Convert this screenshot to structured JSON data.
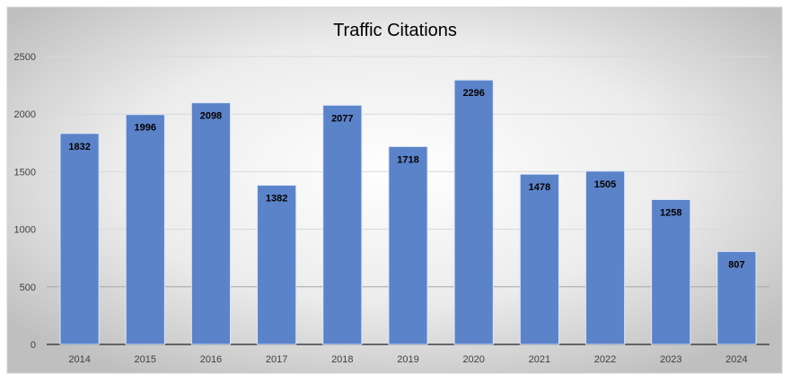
{
  "chart_data": {
    "type": "bar",
    "title": "Traffic Citations",
    "xlabel": "",
    "ylabel": "",
    "categories": [
      "2014",
      "2015",
      "2016",
      "2017",
      "2018",
      "2019",
      "2020",
      "2021",
      "2022",
      "2023",
      "2024"
    ],
    "values": [
      1832,
      1996,
      2098,
      1382,
      2077,
      1718,
      2296,
      1478,
      1505,
      1258,
      807
    ],
    "ylim": [
      0,
      2500
    ],
    "yticks": [
      0,
      500,
      1000,
      1500,
      2000,
      2500
    ],
    "grid": true,
    "legend": "none",
    "data_labels": true,
    "bar_color": "#5b83c9"
  }
}
